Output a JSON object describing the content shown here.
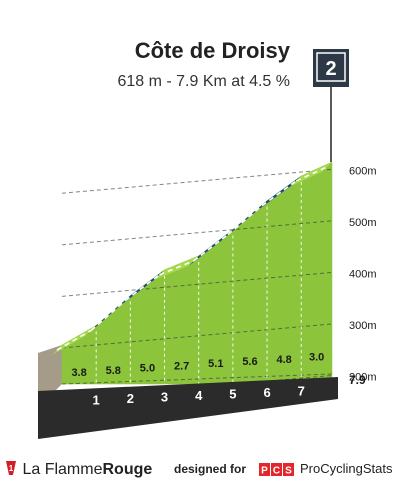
{
  "climb": {
    "name": "Côte de Droisy",
    "stats": "618 m - 7.9 Km at 4.5 %",
    "category": "2"
  },
  "chart_data": {
    "type": "area",
    "title": "Côte de Droisy",
    "subtitle": "618 m - 7.9 Km at 4.5 %",
    "x_unit": "km",
    "y_unit": "m",
    "km_markers": [
      "1",
      "2",
      "3",
      "4",
      "5",
      "6",
      "7"
    ],
    "segment_gradients": [
      "3.8",
      "5.8",
      "5.0",
      "2.7",
      "5.1",
      "5.6",
      "4.8",
      "3.0"
    ],
    "y_ticks": [
      "600m",
      "500m",
      "400m",
      "300m",
      "200m"
    ],
    "end_distance_label": "7.9",
    "profile": [
      {
        "km": 0,
        "elev": 263
      },
      {
        "km": 1,
        "elev": 301
      },
      {
        "km": 2,
        "elev": 359
      },
      {
        "km": 3,
        "elev": 409
      },
      {
        "km": 4,
        "elev": 436
      },
      {
        "km": 5,
        "elev": 487
      },
      {
        "km": 6,
        "elev": 543
      },
      {
        "km": 7,
        "elev": 591
      },
      {
        "km": 7.9,
        "elev": 618
      }
    ],
    "steep_segments": [
      1,
      2,
      4,
      5,
      6
    ],
    "colors": {
      "slope_fill": "#8cc43c",
      "ridge_light": "#a6d94c",
      "ridge_steep": "#1f4f82",
      "base": "#2b2b2b",
      "side": "#a49b88"
    }
  },
  "footer": {
    "brand_left": "La Flamme",
    "brand_right": "Rouge",
    "designed_for": "designed for",
    "pcs_logo_text": "PCS",
    "pcs_name": "ProCyclingStats"
  }
}
